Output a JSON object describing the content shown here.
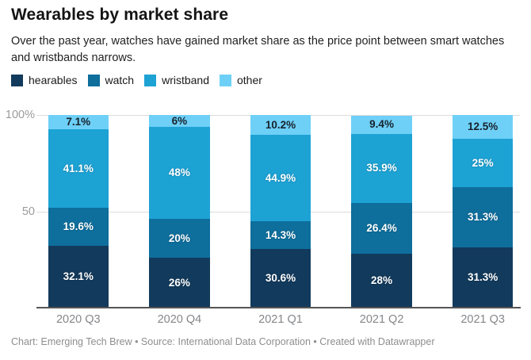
{
  "header": {
    "title": "Wearables by market share",
    "subtitle": "Over the past year, watches have gained market share as the price point between smart watches and wristbands narrows."
  },
  "chart_data": {
    "type": "bar",
    "stacked": true,
    "unit": "%",
    "categories": [
      "2020 Q3",
      "2020 Q4",
      "2021 Q1",
      "2021 Q2",
      "2021 Q3"
    ],
    "series": [
      {
        "name": "hearables",
        "color": "#123a5c",
        "label_color": "#ffffff",
        "values": [
          32.1,
          26,
          30.6,
          28,
          31.3
        ]
      },
      {
        "name": "watch",
        "color": "#0e6e9c",
        "label_color": "#ffffff",
        "values": [
          19.6,
          20,
          14.3,
          26.4,
          31.3
        ]
      },
      {
        "name": "wristband",
        "color": "#1da2d4",
        "label_color": "#ffffff",
        "values": [
          41.1,
          48,
          44.9,
          35.9,
          25
        ]
      },
      {
        "name": "other",
        "color": "#6ed0f7",
        "label_color": "#17222c",
        "values": [
          7.1,
          6,
          10.2,
          9.4,
          12.5
        ]
      }
    ],
    "yticks": [
      {
        "label": "100%",
        "pos": 100
      },
      {
        "label": "50",
        "pos": 50
      }
    ],
    "ylim": [
      0,
      100
    ],
    "grid": "horizontal",
    "legend_position": "top"
  },
  "footer": {
    "text": "Chart: Emerging Tech Brew • Source: International Data Corporation • Created with Datawrapper"
  }
}
